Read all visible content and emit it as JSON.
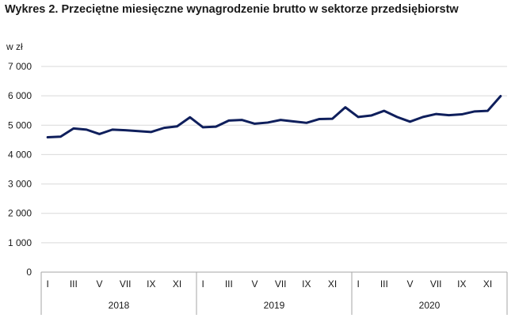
{
  "title": "Wykres 2. Przeciętne miesięczne wynagrodzenie brutto w sektorze przedsiębiorstw",
  "chart_data": {
    "type": "line",
    "title": "Wykres 2. Przeciętne miesięczne wynagrodzenie brutto w sektorze przedsiębiorstw",
    "ylabel": "w zł",
    "xlabel": "",
    "ylim": [
      0,
      7000
    ],
    "yticks": [
      {
        "value": 0,
        "label": "0"
      },
      {
        "value": 1000,
        "label": "1 000"
      },
      {
        "value": 2000,
        "label": "2 000"
      },
      {
        "value": 3000,
        "label": "3 000"
      },
      {
        "value": 4000,
        "label": "4 000"
      },
      {
        "value": 5000,
        "label": "5 000"
      },
      {
        "value": 6000,
        "label": "6 000"
      },
      {
        "value": 7000,
        "label": "7 000"
      }
    ],
    "grid": true,
    "line_color": "#0f1f5c",
    "month_labels": [
      "I",
      "",
      "III",
      "",
      "V",
      "",
      "VII",
      "",
      "IX",
      "",
      "XI",
      ""
    ],
    "years": [
      "2018",
      "2019",
      "2020"
    ],
    "series": [
      {
        "values": [
          4590,
          4610,
          4890,
          4850,
          4700,
          4850,
          4830,
          4800,
          4770,
          4910,
          4960,
          5270,
          4930,
          4950,
          5160,
          5180,
          5050,
          5090,
          5180,
          5130,
          5080,
          5210,
          5220,
          5610,
          5280,
          5330,
          5490,
          5280,
          5120,
          5280,
          5380,
          5340,
          5370,
          5470,
          5490,
          5990
        ]
      }
    ]
  }
}
